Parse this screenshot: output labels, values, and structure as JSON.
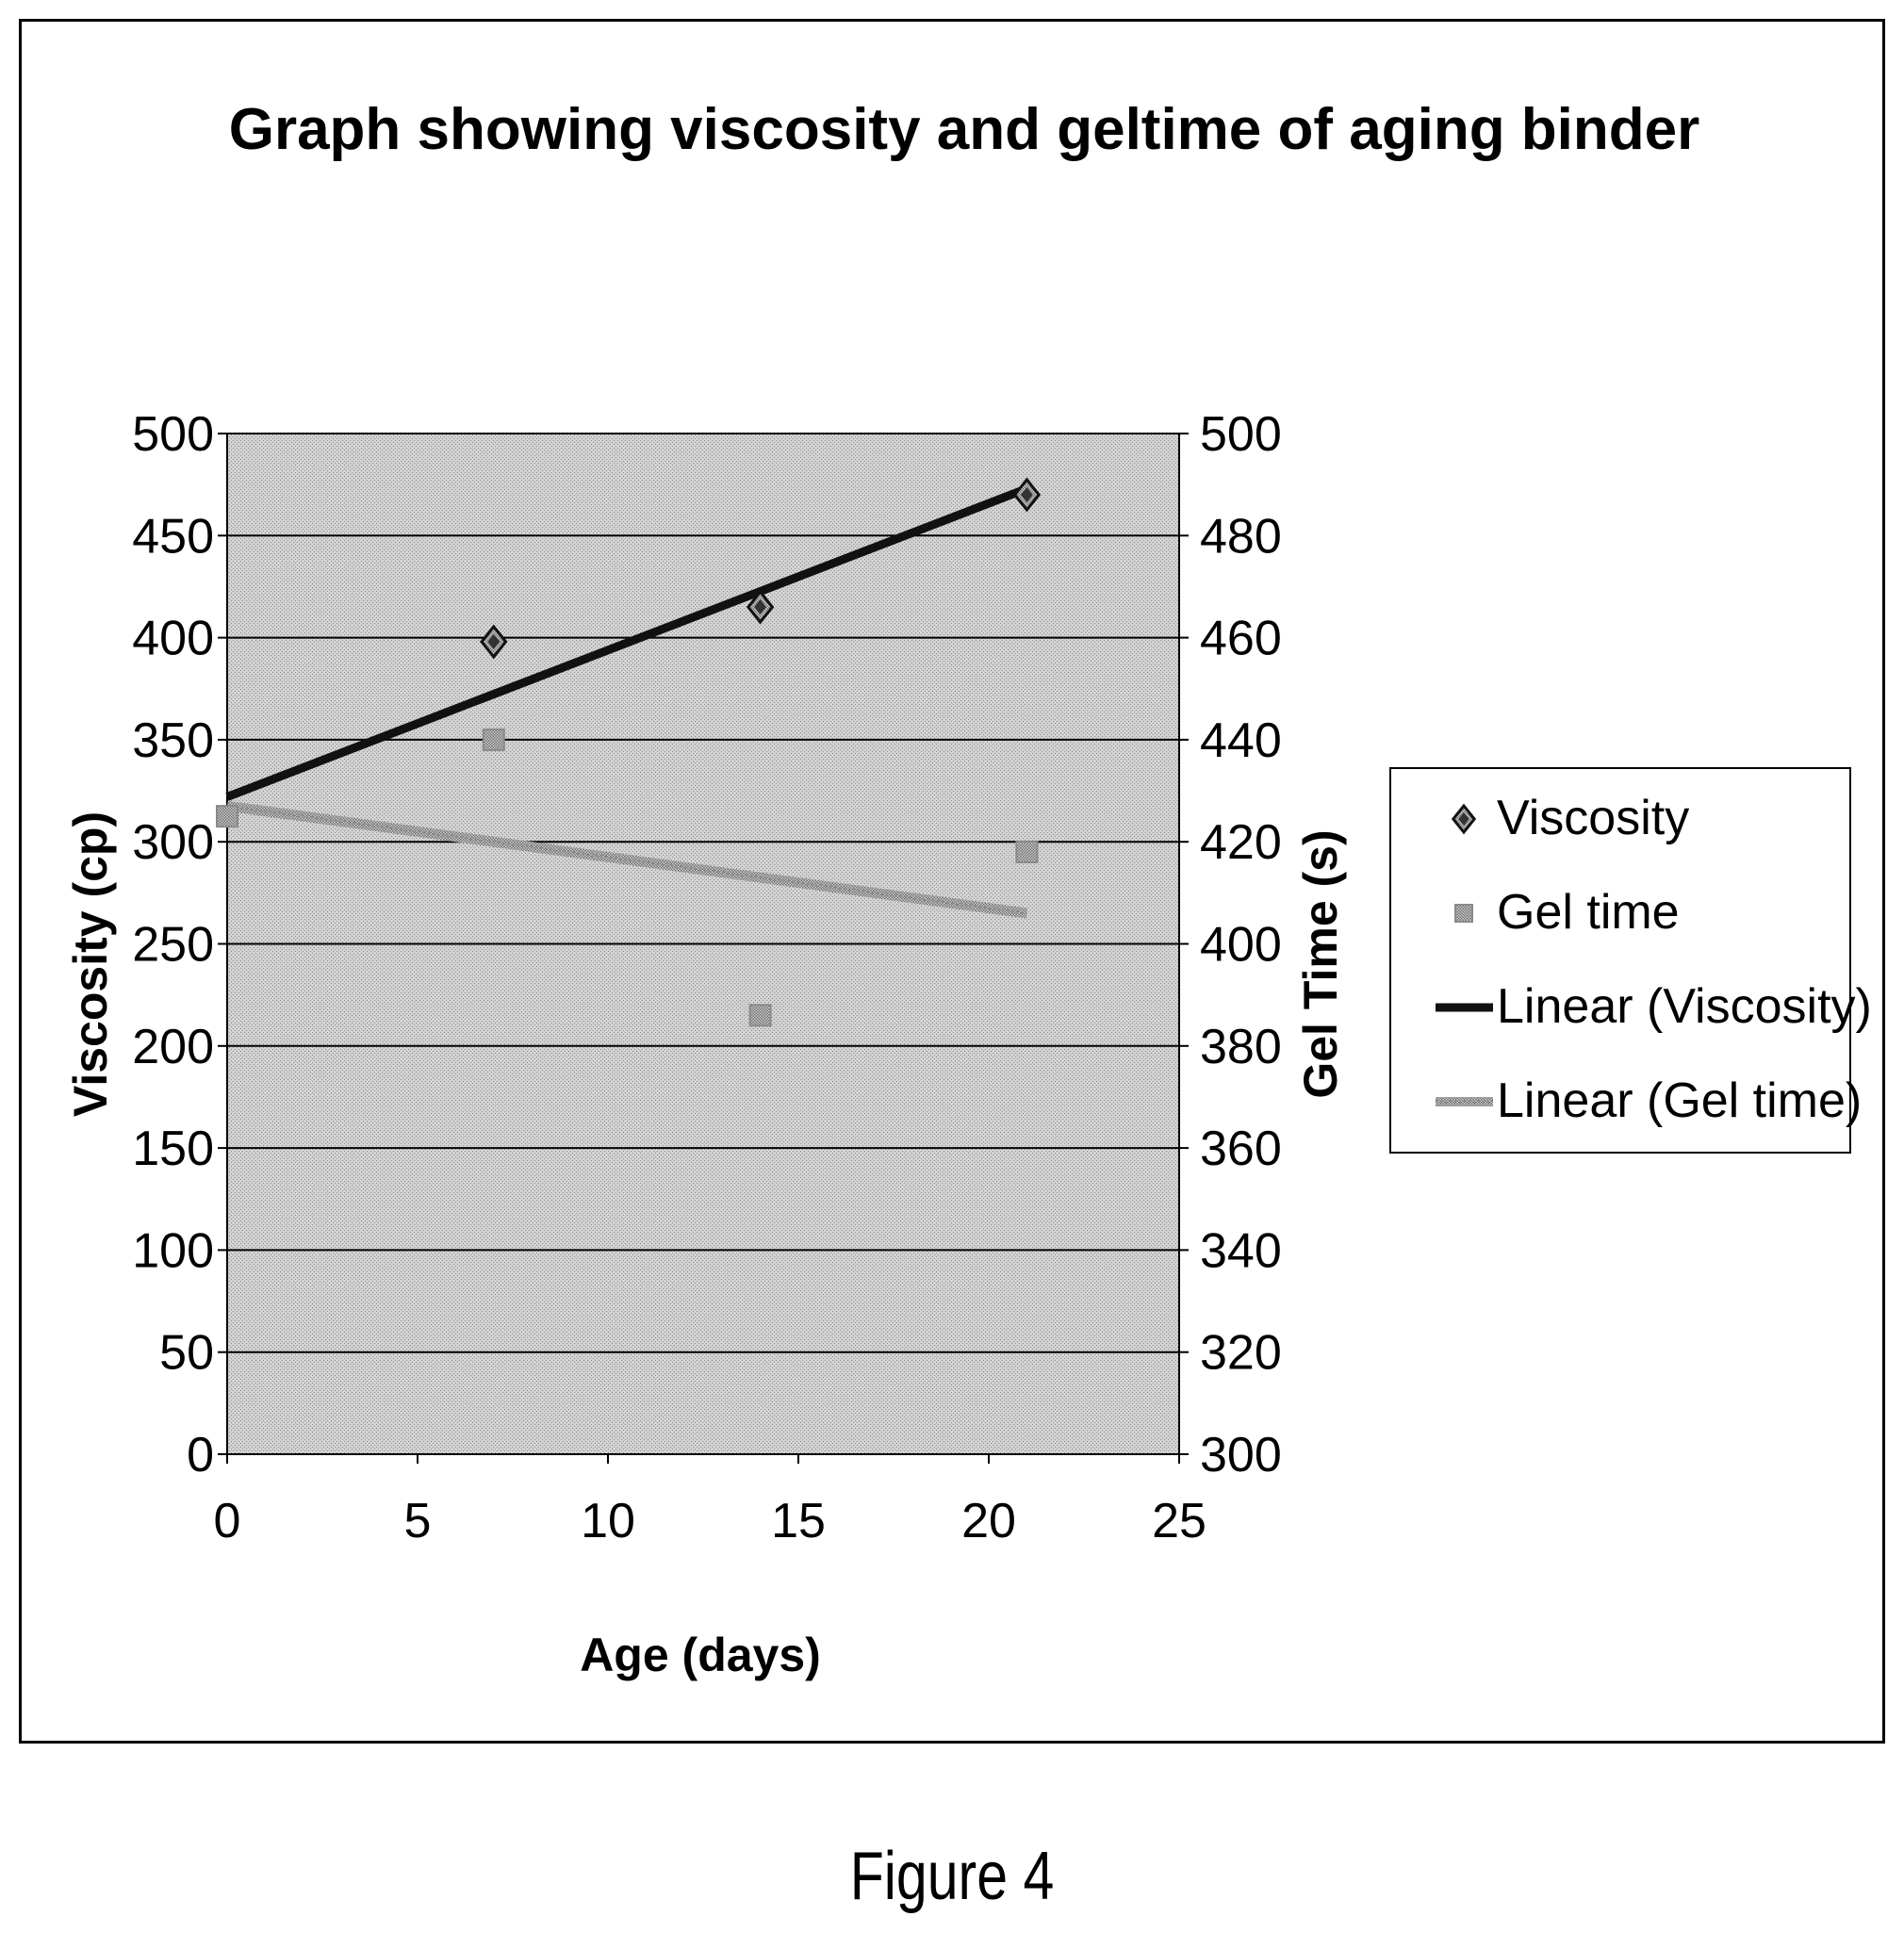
{
  "figure_caption": "Figure 4",
  "chart_data": {
    "type": "scatter",
    "title": "Graph showing viscosity and geltime of aging binder",
    "xlabel": "Age (days)",
    "ylabel": "Viscosity (cp)",
    "y2label": "Gel Time (s)",
    "xlim": [
      0,
      25
    ],
    "ylim": [
      0,
      500
    ],
    "y2lim": [
      300,
      500
    ],
    "x_ticks": [
      0,
      5,
      10,
      15,
      20,
      25
    ],
    "y_ticks": [
      0,
      50,
      100,
      150,
      200,
      250,
      300,
      350,
      400,
      450,
      500
    ],
    "y2_ticks": [
      300,
      320,
      340,
      360,
      380,
      400,
      420,
      440,
      460,
      480,
      500
    ],
    "grid": "horizontal",
    "legend_position": "right",
    "plot_background": "stippled gray",
    "series": [
      {
        "name": "Viscosity",
        "axis": "left",
        "marker": "diamond",
        "color": "#222222",
        "x": [
          7,
          14,
          21
        ],
        "y": [
          398,
          415,
          470
        ]
      },
      {
        "name": "Gel time",
        "axis": "right",
        "marker": "square",
        "color": "#8a8a8a",
        "x": [
          0,
          7,
          14,
          21
        ],
        "y": [
          425,
          440,
          386,
          418
        ]
      }
    ],
    "trendlines": [
      {
        "name": "Linear (Viscosity)",
        "axis": "left",
        "color": "#111111",
        "x": [
          0,
          21
        ],
        "y": [
          322,
          473
        ]
      },
      {
        "name": "Linear (Gel time)",
        "axis": "right",
        "color": "#a0a0a0",
        "x": [
          0,
          21
        ],
        "y": [
          427,
          406
        ]
      }
    ],
    "legend": [
      "Viscosity",
      "Gel time",
      "Linear (Viscosity)",
      "Linear (Gel time)"
    ]
  }
}
